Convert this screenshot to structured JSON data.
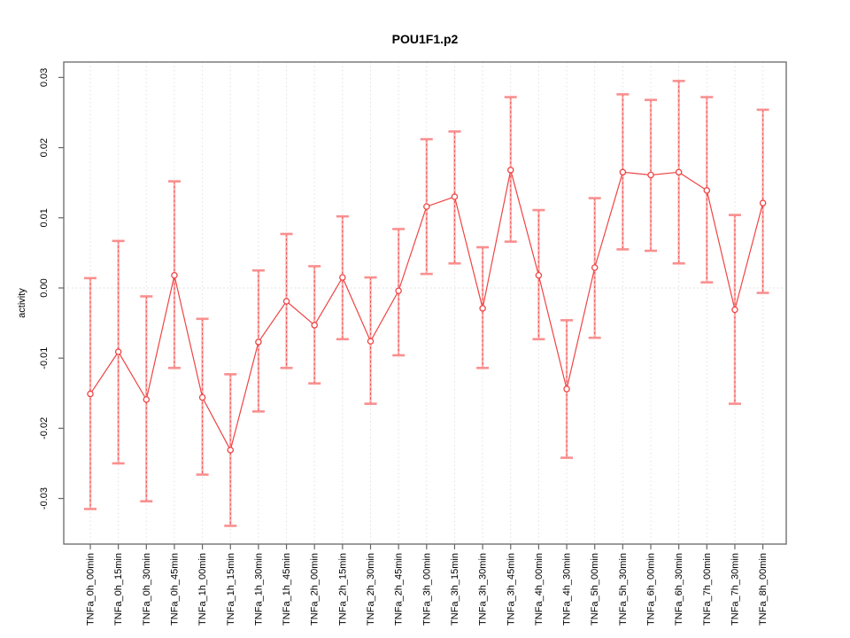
{
  "title": "POU1F1.p2",
  "y_axis": {
    "label": "activity",
    "tick_labels": [
      "-0.03",
      "-0.02",
      "-0.01",
      "0.00",
      "0.01",
      "0.02",
      "0.03"
    ],
    "tick_values": [
      -0.03,
      -0.02,
      -0.01,
      0.0,
      0.01,
      0.02,
      0.03
    ]
  },
  "colors": {
    "series_line": "#ef4444",
    "point_ring": "#ef4444",
    "error_bar_band": "#fa9b9b",
    "error_bar_dash": "#f05050",
    "error_bar_cap": "#fa8f8f",
    "gridline": "#e2e2e2",
    "zero_line": "#dcdcdc",
    "axis_box": "#666666",
    "tick_mark": "#666666",
    "label_text": "#000000"
  },
  "chart_data": {
    "type": "line",
    "title": "POU1F1.p2",
    "xlabel": "",
    "ylabel": "activity",
    "ylim": [
      -0.0365,
      0.0322
    ],
    "grid": "vertical dotted gridlines per category; dotted horizontal line at y=0 only",
    "legend": "none",
    "error_bars": true,
    "categories": [
      "TNFa_0h_00min",
      "TNFa_0h_15min",
      "TNFa_0h_30min",
      "TNFa_0h_45min",
      "TNFa_1h_00min",
      "TNFa_1h_15min",
      "TNFa_1h_30min",
      "TNFa_1h_45min",
      "TNFa_2h_00min",
      "TNFa_2h_15min",
      "TNFa_2h_30min",
      "TNFa_2h_45min",
      "TNFa_3h_00min",
      "TNFa_3h_15min",
      "TNFa_3h_30min",
      "TNFa_3h_45min",
      "TNFa_4h_00min",
      "TNFa_4h_30min",
      "TNFa_5h_00min",
      "TNFa_5h_30min",
      "TNFa_6h_00min",
      "TNFa_6h_30min",
      "TNFa_7h_00min",
      "TNFa_7h_30min",
      "TNFa_8h_00min"
    ],
    "series": [
      {
        "name": "activity",
        "values": [
          -0.0151,
          -0.0091,
          -0.0159,
          0.0018,
          -0.0156,
          -0.0231,
          -0.0077,
          -0.0019,
          -0.0053,
          0.0015,
          -0.0076,
          -0.0004,
          0.0116,
          0.013,
          -0.0029,
          0.0168,
          0.0018,
          -0.0144,
          0.0029,
          0.0165,
          0.0161,
          0.0165,
          0.0139,
          -0.0031,
          0.0121
        ],
        "error_high": [
          0.0014,
          0.0067,
          -0.0012,
          0.0152,
          -0.0044,
          -0.0123,
          0.0025,
          0.0077,
          0.0031,
          0.0102,
          0.0015,
          0.0084,
          0.0212,
          0.0223,
          0.0058,
          0.0272,
          0.0111,
          -0.0046,
          0.0128,
          0.0276,
          0.0268,
          0.0295,
          0.0272,
          0.0104,
          0.0254
        ],
        "error_low": [
          -0.0315,
          -0.025,
          -0.0304,
          -0.0114,
          -0.0266,
          -0.0339,
          -0.0176,
          -0.0114,
          -0.0136,
          -0.0073,
          -0.0165,
          -0.0096,
          0.002,
          0.0035,
          -0.0114,
          0.0066,
          -0.0073,
          -0.0242,
          -0.0071,
          0.0055,
          0.0053,
          0.0035,
          0.0008,
          -0.0165,
          -0.0007
        ]
      }
    ]
  }
}
